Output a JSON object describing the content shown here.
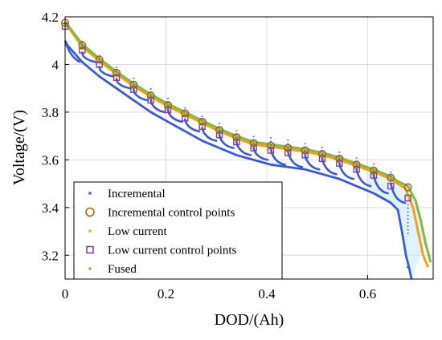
{
  "chart_data": {
    "type": "line",
    "title": "",
    "xlabel": "DOD/(Ah)",
    "ylabel": "Voltage/(V)",
    "xlim": [
      0,
      0.73
    ],
    "ylim": [
      3.1,
      4.2
    ],
    "x_ticks": [
      "0",
      "0.2",
      "0.4",
      "0.6"
    ],
    "x_tick_values": [
      0,
      0.2,
      0.4,
      0.6
    ],
    "y_ticks": [
      "3.2",
      "3.4",
      "3.6",
      "3.8",
      "4",
      "4.2"
    ],
    "y_tick_values": [
      3.2,
      3.4,
      3.6,
      3.8,
      4.0,
      4.2
    ],
    "grid": true,
    "legend_position": "bottom-left",
    "colors": {
      "incremental": "#3a5ad8",
      "incremental_ctrl": "#9a6a1a",
      "low_current": "#f0a020",
      "low_current_ctrl": "#7a3fa0",
      "fused": "#8ab83a",
      "fill": "#d8f0f8"
    },
    "legend": [
      {
        "key": "incremental",
        "label": "Incremental",
        "marker": "dot"
      },
      {
        "key": "incremental_ctrl",
        "label": "Incremental control points",
        "marker": "circle"
      },
      {
        "key": "low_current",
        "label": "Low current",
        "marker": "dot"
      },
      {
        "key": "low_current_ctrl",
        "label": "Low current control points",
        "marker": "square"
      },
      {
        "key": "fused",
        "label": "Fused",
        "marker": "dot"
      }
    ],
    "series": [
      {
        "name": "Low current",
        "x": [
          0,
          0.034,
          0.068,
          0.102,
          0.136,
          0.17,
          0.204,
          0.238,
          0.272,
          0.306,
          0.34,
          0.374,
          0.408,
          0.442,
          0.476,
          0.51,
          0.544,
          0.578,
          0.612,
          0.646,
          0.66,
          0.675,
          0.69,
          0.7,
          0.71,
          0.72
        ],
        "y": [
          4.175,
          4.075,
          4.015,
          3.96,
          3.91,
          3.865,
          3.825,
          3.79,
          3.755,
          3.72,
          3.69,
          3.665,
          3.655,
          3.645,
          3.635,
          3.62,
          3.6,
          3.575,
          3.55,
          3.52,
          3.5,
          3.48,
          3.4,
          3.3,
          3.2,
          3.15
        ]
      },
      {
        "name": "Fused",
        "x": [
          0,
          0.034,
          0.068,
          0.102,
          0.136,
          0.17,
          0.204,
          0.238,
          0.272,
          0.306,
          0.34,
          0.374,
          0.408,
          0.442,
          0.476,
          0.51,
          0.544,
          0.578,
          0.612,
          0.646,
          0.66,
          0.68,
          0.695,
          0.705,
          0.715,
          0.725
        ],
        "y": [
          4.18,
          4.085,
          4.025,
          3.97,
          3.92,
          3.875,
          3.835,
          3.8,
          3.765,
          3.73,
          3.7,
          3.675,
          3.665,
          3.655,
          3.645,
          3.63,
          3.61,
          3.585,
          3.56,
          3.53,
          3.51,
          3.49,
          3.43,
          3.35,
          3.25,
          3.17
        ]
      },
      {
        "name": "Incremental",
        "x": [
          0,
          0.005,
          0.034,
          0.068,
          0.102,
          0.136,
          0.17,
          0.204,
          0.238,
          0.272,
          0.306,
          0.34,
          0.374,
          0.408,
          0.442,
          0.476,
          0.51,
          0.544,
          0.578,
          0.612,
          0.646,
          0.66,
          0.668,
          0.676,
          0.682,
          0.687
        ],
        "y": [
          4.1,
          4.08,
          4.01,
          3.95,
          3.9,
          3.85,
          3.8,
          3.76,
          3.72,
          3.68,
          3.65,
          3.62,
          3.6,
          3.58,
          3.57,
          3.56,
          3.54,
          3.52,
          3.49,
          3.46,
          3.42,
          3.39,
          3.3,
          3.2,
          3.15,
          3.1
        ]
      }
    ],
    "pulses": {
      "x": [
        0.034,
        0.068,
        0.102,
        0.136,
        0.17,
        0.204,
        0.238,
        0.272,
        0.306,
        0.34,
        0.374,
        0.408,
        0.442,
        0.476,
        0.51,
        0.544,
        0.578,
        0.612,
        0.646
      ],
      "y_start": [
        4.05,
        3.99,
        3.94,
        3.895,
        3.85,
        3.81,
        3.77,
        3.735,
        3.705,
        3.675,
        3.65,
        3.645,
        3.635,
        3.62,
        3.605,
        3.585,
        3.56,
        3.535,
        3.5
      ],
      "y_end": [
        4.01,
        3.95,
        3.9,
        3.85,
        3.8,
        3.76,
        3.72,
        3.68,
        3.65,
        3.62,
        3.6,
        3.58,
        3.57,
        3.56,
        3.54,
        3.52,
        3.49,
        3.46,
        3.42
      ]
    },
    "control_points": {
      "x": [
        0,
        0.034,
        0.068,
        0.102,
        0.136,
        0.17,
        0.204,
        0.238,
        0.272,
        0.306,
        0.34,
        0.374,
        0.408,
        0.442,
        0.476,
        0.51,
        0.544,
        0.578,
        0.612,
        0.646,
        0.68
      ],
      "incremental_y": [
        4.175,
        4.08,
        4.02,
        3.965,
        3.915,
        3.87,
        3.83,
        3.795,
        3.76,
        3.725,
        3.695,
        3.67,
        3.66,
        3.65,
        3.64,
        3.625,
        3.605,
        3.58,
        3.555,
        3.525,
        3.485
      ],
      "low_current_y": [
        4.16,
        4.06,
        4.0,
        3.945,
        3.895,
        3.85,
        3.81,
        3.775,
        3.74,
        3.705,
        3.675,
        3.65,
        3.64,
        3.63,
        3.62,
        3.605,
        3.585,
        3.56,
        3.535,
        3.49,
        3.44
      ]
    }
  }
}
